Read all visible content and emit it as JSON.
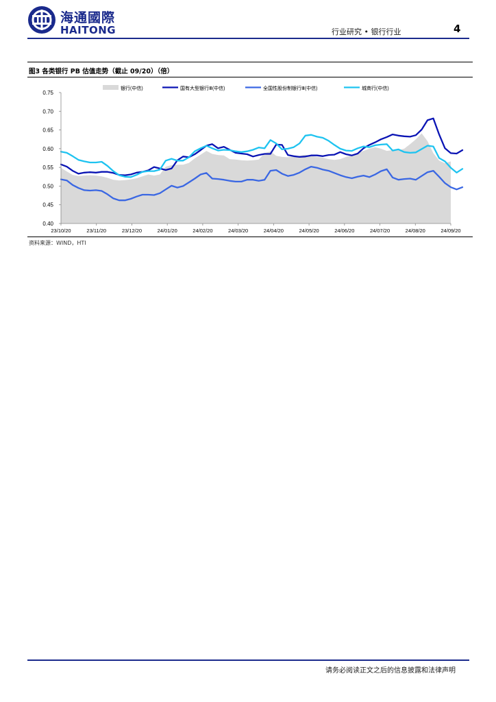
{
  "header": {
    "logo_cn": "海通國際",
    "logo_en": "HAITONG",
    "section": "行业研究 • 银行行业",
    "page_number": "4"
  },
  "figure": {
    "title": "图3  各类银行 PB 估值走势（截止 09/20）（倍）",
    "source": "资料来源：WIND，HTI"
  },
  "chart_data": {
    "type": "line",
    "x_labels": [
      "23/10/20",
      "23/11/20",
      "23/12/20",
      "24/01/20",
      "24/02/20",
      "24/03/20",
      "24/04/20",
      "24/05/20",
      "24/06/20",
      "24/07/20",
      "24/08/20",
      "24/09/20"
    ],
    "y_ticks": [
      "0.40",
      "0.45",
      "0.50",
      "0.55",
      "0.60",
      "0.65",
      "0.70",
      "0.75"
    ],
    "ylim": [
      0.4,
      0.75
    ],
    "grid": false,
    "legend_position": "top",
    "series": [
      {
        "name": "银行(中信)",
        "kind": "area",
        "color": "#d9d9d9",
        "values": [
          0.549,
          0.539,
          0.53,
          0.527,
          0.528,
          0.529,
          0.528,
          0.526,
          0.522,
          0.517,
          0.515,
          0.516,
          0.518,
          0.521,
          0.526,
          0.531,
          0.528,
          0.531,
          0.552,
          0.556,
          0.557,
          0.557,
          0.562,
          0.574,
          0.584,
          0.594,
          0.586,
          0.583,
          0.582,
          0.572,
          0.571,
          0.569,
          0.568,
          0.569,
          0.571,
          0.588,
          0.593,
          0.581,
          0.578,
          0.577,
          0.58,
          0.581,
          0.584,
          0.58,
          0.578,
          0.576,
          0.572,
          0.57,
          0.572,
          0.578,
          0.583,
          0.589,
          0.594,
          0.6,
          0.604,
          0.6,
          0.594,
          0.596,
          0.596,
          0.6,
          0.612,
          0.625,
          0.641,
          0.62,
          0.588,
          0.568,
          0.561,
          0.566
        ]
      },
      {
        "name": "国有大型银行Ⅲ(中信)",
        "kind": "line",
        "color": "#0a14b4",
        "values": [
          0.558,
          0.552,
          0.541,
          0.533,
          0.536,
          0.537,
          0.536,
          0.538,
          0.538,
          0.535,
          0.53,
          0.529,
          0.531,
          0.536,
          0.538,
          0.542,
          0.551,
          0.547,
          0.543,
          0.547,
          0.569,
          0.579,
          0.577,
          0.585,
          0.596,
          0.608,
          0.612,
          0.601,
          0.605,
          0.597,
          0.589,
          0.587,
          0.585,
          0.579,
          0.583,
          0.586,
          0.586,
          0.611,
          0.61,
          0.583,
          0.58,
          0.578,
          0.579,
          0.582,
          0.582,
          0.58,
          0.583,
          0.584,
          0.591,
          0.585,
          0.582,
          0.587,
          0.601,
          0.61,
          0.617,
          0.625,
          0.631,
          0.638,
          0.635,
          0.633,
          0.632,
          0.636,
          0.651,
          0.676,
          0.681,
          0.638,
          0.601,
          0.588,
          0.587,
          0.596
        ]
      },
      {
        "name": "全国性股份制银行Ⅲ(中信)",
        "kind": "line",
        "color": "#3a67e3",
        "values": [
          0.518,
          0.515,
          0.503,
          0.495,
          0.489,
          0.488,
          0.489,
          0.487,
          0.478,
          0.467,
          0.462,
          0.462,
          0.466,
          0.472,
          0.477,
          0.477,
          0.476,
          0.481,
          0.491,
          0.501,
          0.496,
          0.5,
          0.51,
          0.52,
          0.531,
          0.535,
          0.52,
          0.519,
          0.517,
          0.514,
          0.512,
          0.512,
          0.517,
          0.517,
          0.514,
          0.517,
          0.541,
          0.543,
          0.533,
          0.527,
          0.53,
          0.536,
          0.545,
          0.552,
          0.549,
          0.544,
          0.541,
          0.535,
          0.529,
          0.524,
          0.521,
          0.525,
          0.528,
          0.524,
          0.531,
          0.54,
          0.545,
          0.523,
          0.517,
          0.519,
          0.52,
          0.517,
          0.527,
          0.537,
          0.541,
          0.525,
          0.508,
          0.497,
          0.491,
          0.497
        ]
      },
      {
        "name": "城商行(中信)",
        "kind": "line",
        "color": "#1ec3f0",
        "values": [
          0.592,
          0.589,
          0.58,
          0.57,
          0.566,
          0.563,
          0.563,
          0.565,
          0.554,
          0.54,
          0.529,
          0.525,
          0.524,
          0.53,
          0.538,
          0.54,
          0.54,
          0.544,
          0.568,
          0.573,
          0.568,
          0.568,
          0.577,
          0.593,
          0.601,
          0.608,
          0.601,
          0.595,
          0.597,
          0.596,
          0.593,
          0.591,
          0.593,
          0.597,
          0.603,
          0.601,
          0.623,
          0.614,
          0.598,
          0.6,
          0.604,
          0.614,
          0.635,
          0.637,
          0.632,
          0.629,
          0.621,
          0.61,
          0.6,
          0.595,
          0.594,
          0.601,
          0.606,
          0.604,
          0.609,
          0.611,
          0.612,
          0.595,
          0.598,
          0.591,
          0.589,
          0.59,
          0.599,
          0.608,
          0.606,
          0.575,
          0.566,
          0.549,
          0.536,
          0.546
        ]
      }
    ]
  },
  "footer": {
    "disclaimer": "请务必阅读正文之后的信息披露和法律声明"
  }
}
